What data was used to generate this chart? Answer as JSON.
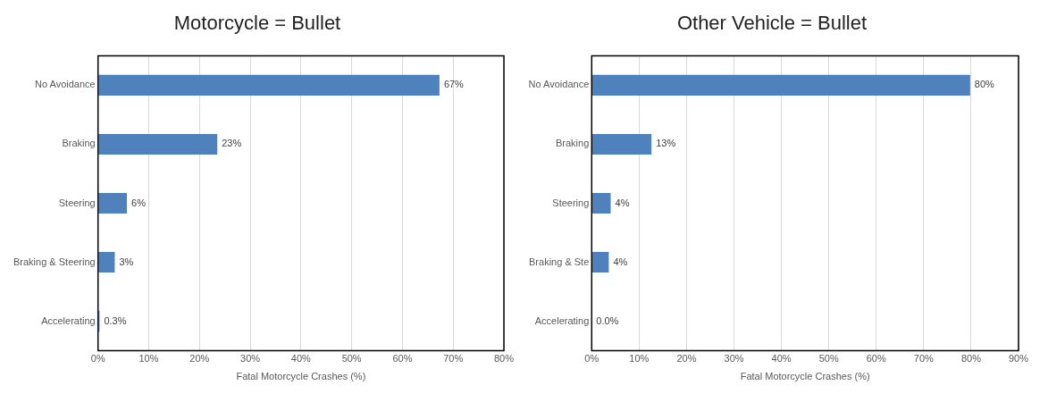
{
  "chart_data": [
    {
      "type": "bar",
      "orientation": "horizontal",
      "title": "Motorcycle = Bullet",
      "xlabel": "Fatal Motorcycle Crashes (%)",
      "categories": [
        "No Avoidance",
        "Braking",
        "Steering",
        "Braking & Steering",
        "Accelerating"
      ],
      "values": [
        67.3,
        23.5,
        5.7,
        3.3,
        0.3
      ],
      "color": "#4f81bd",
      "value_labels": [
        "67%",
        "23%",
        "6%",
        "3%",
        "0.3%"
      ],
      "xlim": [
        0,
        80
      ],
      "xticks": [
        {
          "value": 0,
          "label": "0%"
        },
        {
          "value": 10,
          "label": "10%"
        },
        {
          "value": 20,
          "label": "20%"
        },
        {
          "value": 30,
          "label": "30%"
        },
        {
          "value": 40,
          "label": "40%"
        },
        {
          "value": 50,
          "label": "50%"
        },
        {
          "value": 60,
          "label": "60%"
        },
        {
          "value": 70,
          "label": "70%"
        },
        {
          "value": 80,
          "label": "80%"
        }
      ],
      "grid": "x",
      "legend": false
    },
    {
      "type": "bar",
      "orientation": "horizontal",
      "title": "Other Vehicle = Bullet",
      "xlabel": "Fatal Motorcycle Crashes (%)",
      "categories": [
        "No Avoidance",
        "Braking",
        "Steering",
        "Braking & Ste",
        "Accelerating"
      ],
      "values": [
        79.8,
        12.6,
        4.0,
        3.6,
        0.0
      ],
      "color": "#4f81bd",
      "value_labels": [
        "80%",
        "13%",
        "4%",
        "4%",
        "0.0%"
      ],
      "xlim": [
        0,
        90
      ],
      "xticks": [
        {
          "value": 0,
          "label": "0%"
        },
        {
          "value": 10,
          "label": "10%"
        },
        {
          "value": 20,
          "label": "20%"
        },
        {
          "value": 30,
          "label": "30%"
        },
        {
          "value": 40,
          "label": "40%"
        },
        {
          "value": 50,
          "label": "50%"
        },
        {
          "value": 60,
          "label": "60%"
        },
        {
          "value": 70,
          "label": "70%"
        },
        {
          "value": 80,
          "label": "80%"
        },
        {
          "value": 90,
          "label": "90%"
        }
      ],
      "grid": "x",
      "legend": false
    }
  ]
}
